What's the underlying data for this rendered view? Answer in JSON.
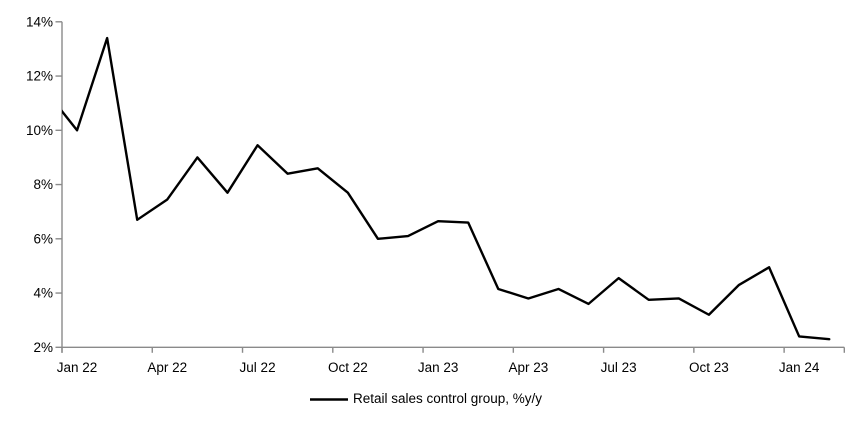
{
  "chart_data": {
    "type": "line",
    "title": "",
    "categories": [
      "Jan 22",
      "Feb 22",
      "Mar 22",
      "Apr 22",
      "May 22",
      "Jun 22",
      "Jul 22",
      "Aug 22",
      "Sep 22",
      "Oct 22",
      "Nov 22",
      "Dec 22",
      "Jan 23",
      "Feb 23",
      "Mar 23",
      "Apr 23",
      "May 23",
      "Jun 23",
      "Jul 23",
      "Aug 23",
      "Sep 23",
      "Oct 23",
      "Nov 23",
      "Dec 23",
      "Jan 24",
      "Feb 24"
    ],
    "series": [
      {
        "name": "Retail sales control group, %y/y",
        "values": [
          10.0,
          13.4,
          6.7,
          7.45,
          9.0,
          7.7,
          9.45,
          8.4,
          8.6,
          7.7,
          6.0,
          6.1,
          6.65,
          6.6,
          4.15,
          3.8,
          4.15,
          3.6,
          4.55,
          3.75,
          3.8,
          3.2,
          4.3,
          4.95,
          2.4,
          2.3
        ],
        "color": "#000000",
        "line_width": 2.4
      }
    ],
    "clipped_start_point": {
      "value": 11.4,
      "note": "line enters the plot clipped at the left axis at about 10.7%"
    },
    "ylim": [
      2,
      14
    ],
    "y_tick_labels": [
      "2%",
      "4%",
      "6%",
      "8%",
      "10%",
      "12%",
      "14%"
    ],
    "x_tick_labels": [
      "Jan 22",
      "Apr 22",
      "Jul 22",
      "Oct 22",
      "Jan 23",
      "Apr 23",
      "Jul 23",
      "Oct 23",
      "Jan 24"
    ],
    "x_tick_interval_months": 3,
    "grid": "off",
    "legend_position": "bottom-center",
    "axis_color": "#8a8a8a",
    "text_color": "#000000",
    "background": "#ffffff"
  }
}
